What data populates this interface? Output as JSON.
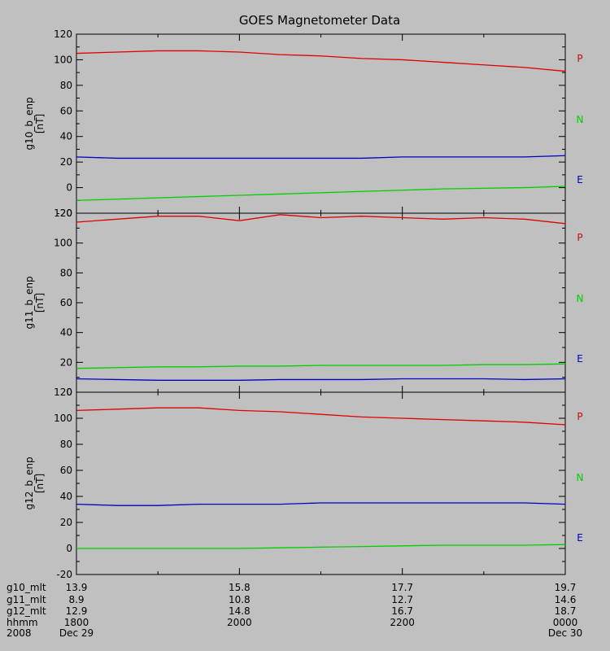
{
  "title": "GOES Magnetometer Data",
  "colors": {
    "P": "#e00000",
    "N": "#00d000",
    "E": "#0000c0",
    "background": "#c0c0c0",
    "axis": "#000000"
  },
  "chart_data": [
    {
      "type": "line",
      "ylabel": "g10_b_enp",
      "yunit": "[nT]",
      "ylim": [
        -20,
        120
      ],
      "yticks": [
        -20,
        0,
        20,
        40,
        60,
        80,
        100,
        120
      ],
      "x_hours": [
        0,
        0.5,
        1,
        1.5,
        2,
        2.5,
        3,
        3.5,
        4,
        4.5,
        5,
        5.5,
        6
      ],
      "series": [
        {
          "name": "P",
          "color": "#e00000",
          "values": [
            105,
            106,
            107,
            107,
            106,
            104,
            103,
            101,
            100,
            98,
            96,
            94,
            91
          ]
        },
        {
          "name": "N",
          "color": "#00d000",
          "values": [
            -10,
            -9,
            -8,
            -7,
            -6,
            -5,
            -4,
            -3,
            -2,
            -1,
            -0.5,
            0,
            1
          ]
        },
        {
          "name": "E",
          "color": "#0000c0",
          "values": [
            24,
            23,
            23,
            23,
            23,
            23,
            23,
            23,
            24,
            24,
            24,
            24,
            25
          ]
        }
      ]
    },
    {
      "type": "line",
      "ylabel": "g11_b_enp",
      "yunit": "[nT]",
      "ylim": [
        0,
        120
      ],
      "yticks": [
        0,
        20,
        40,
        60,
        80,
        100,
        120
      ],
      "x_hours": [
        0,
        0.5,
        1,
        1.5,
        2,
        2.5,
        3,
        3.5,
        4,
        4.5,
        5,
        5.5,
        6
      ],
      "series": [
        {
          "name": "P",
          "color": "#e00000",
          "values": [
            114,
            116,
            118,
            118,
            115,
            119,
            117,
            118,
            117,
            116,
            117,
            116,
            113
          ]
        },
        {
          "name": "N",
          "color": "#00d000",
          "values": [
            16,
            16.5,
            17,
            17,
            17.5,
            17.5,
            18,
            18,
            18,
            18,
            18.5,
            18.5,
            19
          ]
        },
        {
          "name": "E",
          "color": "#0000c0",
          "values": [
            9,
            8.5,
            8,
            8,
            8,
            8.5,
            8.5,
            8.5,
            9,
            9,
            9,
            8.5,
            9
          ]
        }
      ]
    },
    {
      "type": "line",
      "ylabel": "g12_b_enp",
      "yunit": "[nT]",
      "ylim": [
        -20,
        120
      ],
      "yticks": [
        -20,
        0,
        20,
        40,
        60,
        80,
        100,
        120
      ],
      "x_hours": [
        0,
        0.5,
        1,
        1.5,
        2,
        2.5,
        3,
        3.5,
        4,
        4.5,
        5,
        5.5,
        6
      ],
      "series": [
        {
          "name": "P",
          "color": "#e00000",
          "values": [
            106,
            107,
            108,
            108,
            106,
            105,
            103,
            101,
            100,
            99,
            98,
            97,
            95
          ]
        },
        {
          "name": "N",
          "color": "#00d000",
          "values": [
            0,
            0,
            0,
            0,
            0,
            0.5,
            1,
            1.5,
            2,
            2.5,
            2.5,
            2.5,
            3
          ]
        },
        {
          "name": "E",
          "color": "#0000c0",
          "values": [
            34,
            33,
            33,
            34,
            34,
            34,
            35,
            35,
            35,
            35,
            35,
            35,
            34
          ]
        }
      ]
    }
  ],
  "time_axis": {
    "row_labels": [
      "g10_mlt",
      "g11_mlt",
      "g12_mlt",
      "hhmm",
      "2008"
    ],
    "columns": [
      {
        "x_hours": 0,
        "values": [
          "13.9",
          "8.9",
          "12.9",
          "1800",
          "Dec 29"
        ]
      },
      {
        "x_hours": 2,
        "values": [
          "15.8",
          "10.8",
          "14.8",
          "2000",
          ""
        ]
      },
      {
        "x_hours": 4,
        "values": [
          "17.7",
          "12.7",
          "16.7",
          "2200",
          ""
        ]
      },
      {
        "x_hours": 6,
        "values": [
          "19.7",
          "14.6",
          "18.7",
          "0000",
          "Dec 30"
        ]
      }
    ]
  }
}
